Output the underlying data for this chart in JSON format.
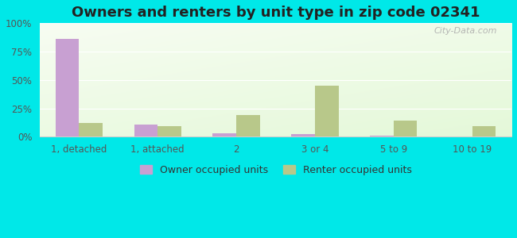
{
  "title": "Owners and renters by unit type in zip code 02341",
  "categories": [
    "1, detached",
    "1, attached",
    "2",
    "3 or 4",
    "5 to 9",
    "10 to 19"
  ],
  "owner_values": [
    86,
    11,
    3,
    2,
    1,
    0
  ],
  "renter_values": [
    12,
    9,
    19,
    45,
    14,
    9
  ],
  "owner_color": "#c8a0d2",
  "renter_color": "#b8c88a",
  "background_color": "#00e8e8",
  "title_fontsize": 13,
  "tick_fontsize": 8.5,
  "legend_fontsize": 9,
  "ylim": [
    0,
    100
  ],
  "yticks": [
    0,
    25,
    50,
    75,
    100
  ],
  "ytick_labels": [
    "0%",
    "25%",
    "50%",
    "75%",
    "100%"
  ],
  "watermark": "City-Data.com",
  "bar_width": 0.3
}
